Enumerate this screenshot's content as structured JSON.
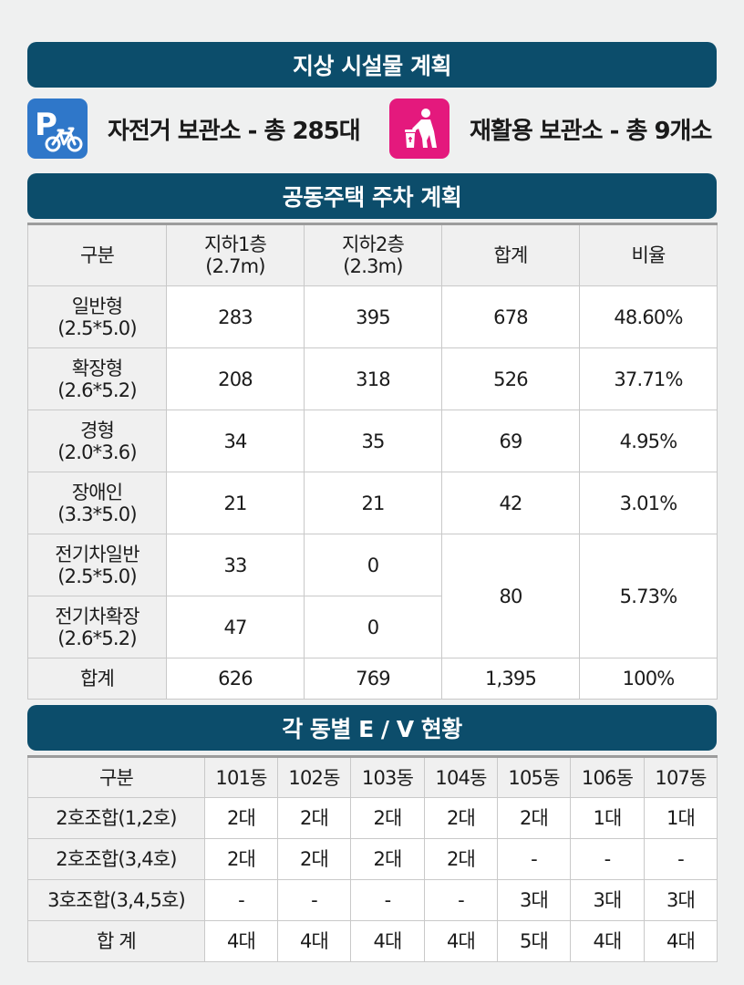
{
  "sections": {
    "ground_title": "지상 시설물 계획",
    "parking_title": "공동주택 주차 계획",
    "ev_title": "각 동별 E / V 현황"
  },
  "facilities": {
    "bicycle": {
      "label": "자전거 보관소 - 총 285대",
      "icon": "bicycle-parking-icon",
      "color": "#2f77c9"
    },
    "recycle": {
      "label": "재활용 보관소 - 총 9개소",
      "icon": "recycling-person-icon",
      "color": "#e4197d"
    }
  },
  "parking": {
    "headers": {
      "category": "구분",
      "b1": {
        "name": "지하1층",
        "height": "(2.7m)"
      },
      "b2": {
        "name": "지하2층",
        "height": "(2.3m)"
      },
      "total": "합계",
      "ratio": "비율"
    },
    "rows": [
      {
        "name": "일반형",
        "size": "(2.5*5.0)",
        "b1": "283",
        "b2": "395",
        "total": "678",
        "ratio": "48.60%"
      },
      {
        "name": "확장형",
        "size": "(2.6*5.2)",
        "b1": "208",
        "b2": "318",
        "total": "526",
        "ratio": "37.71%"
      },
      {
        "name": "경형",
        "size": "(2.0*3.6)",
        "b1": "34",
        "b2": "35",
        "total": "69",
        "ratio": "4.95%"
      },
      {
        "name": "장애인",
        "size": "(3.3*5.0)",
        "b1": "21",
        "b2": "21",
        "total": "42",
        "ratio": "3.01%"
      }
    ],
    "ev_rows": [
      {
        "name": "전기차일반",
        "size": "(2.5*5.0)",
        "b1": "33",
        "b2": "0"
      },
      {
        "name": "전기차확장",
        "size": "(2.6*5.2)",
        "b1": "47",
        "b2": "0"
      }
    ],
    "ev_total": "80",
    "ev_ratio": "5.73%",
    "sum": {
      "label": "합계",
      "b1": "626",
      "b2": "769",
      "total": "1,395",
      "ratio": "100%"
    }
  },
  "elevators": {
    "headers": [
      "구분",
      "101동",
      "102동",
      "103동",
      "104동",
      "105동",
      "106동",
      "107동"
    ],
    "rows": [
      {
        "label": "2호조합(1,2호)",
        "values": [
          "2대",
          "2대",
          "2대",
          "2대",
          "2대",
          "1대",
          "1대"
        ]
      },
      {
        "label": "2호조합(3,4호)",
        "values": [
          "2대",
          "2대",
          "2대",
          "2대",
          "-",
          "-",
          "-"
        ]
      },
      {
        "label": "3호조합(3,4,5호)",
        "values": [
          "-",
          "-",
          "-",
          "-",
          "3대",
          "3대",
          "3대"
        ]
      },
      {
        "label": "합 계",
        "values": [
          "4대",
          "4대",
          "4대",
          "4대",
          "5대",
          "4대",
          "4대"
        ]
      }
    ]
  }
}
